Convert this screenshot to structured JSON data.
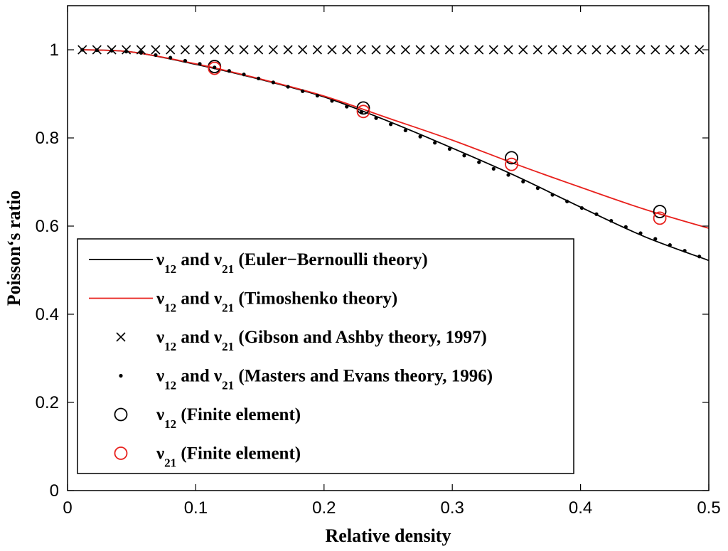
{
  "chart_data": {
    "type": "line",
    "xlabel": "Relative density",
    "ylabel": "Poisson‘s ratio",
    "xlim": [
      0,
      0.5
    ],
    "ylim": [
      0,
      1.1
    ],
    "xticks": [
      0,
      0.1,
      0.2,
      0.3,
      0.4,
      0.5
    ],
    "xtick_labels": [
      "0",
      "0.1",
      "0.2",
      "0.3",
      "0.4",
      "0.5"
    ],
    "yticks": [
      0,
      0.2,
      0.4,
      0.6,
      0.8,
      1
    ],
    "ytick_labels": [
      "0",
      "0.2",
      "0.4",
      "0.6",
      "0.8",
      "1"
    ],
    "grid": false,
    "legend_position": "lower-left",
    "series": [
      {
        "name": "Euler-Bernoulli",
        "style": "line",
        "color": "#000000",
        "label_parts": [
          "ν",
          "12",
          " and ν",
          "21",
          " (Euler−Bernoulli theory)"
        ],
        "x": [
          0.0115,
          0.05,
          0.1,
          0.15,
          0.2,
          0.25,
          0.3,
          0.35,
          0.4,
          0.45,
          0.5
        ],
        "y": [
          1.0,
          0.995,
          0.967,
          0.933,
          0.893,
          0.838,
          0.777,
          0.713,
          0.643,
          0.576,
          0.522
        ]
      },
      {
        "name": "Timoshenko",
        "style": "line",
        "color": "#e8211d",
        "label_parts": [
          "ν",
          "12",
          " and ν",
          "21",
          " (Timoshenko theory)"
        ],
        "x": [
          0.0115,
          0.05,
          0.1,
          0.15,
          0.2,
          0.25,
          0.3,
          0.35,
          0.4,
          0.45,
          0.5
        ],
        "y": [
          1.0,
          0.995,
          0.968,
          0.934,
          0.895,
          0.845,
          0.795,
          0.74,
          0.688,
          0.638,
          0.595
        ]
      },
      {
        "name": "Gibson and Ashby",
        "style": "x-marker",
        "color": "#000000",
        "label_parts": [
          "ν",
          "12",
          " and ν",
          "21",
          " (Gibson and Ashby theory, 1997)"
        ],
        "x": [
          0.0115,
          0.0229,
          0.0344,
          0.0458,
          0.0573,
          0.0687,
          0.0802,
          0.0917,
          0.1031,
          0.1146,
          0.126,
          0.1375,
          0.1489,
          0.1604,
          0.1719,
          0.1833,
          0.1948,
          0.2062,
          0.2177,
          0.2291,
          0.2406,
          0.252,
          0.2635,
          0.275,
          0.2864,
          0.2979,
          0.3093,
          0.3208,
          0.3322,
          0.3437,
          0.3552,
          0.3666,
          0.3781,
          0.3895,
          0.401,
          0.4124,
          0.4239,
          0.4353,
          0.4468,
          0.4583,
          0.4697,
          0.4812,
          0.4926
        ],
        "y": [
          1,
          1,
          1,
          1,
          1,
          1,
          1,
          1,
          1,
          1,
          1,
          1,
          1,
          1,
          1,
          1,
          1,
          1,
          1,
          1,
          1,
          1,
          1,
          1,
          1,
          1,
          1,
          1,
          1,
          1,
          1,
          1,
          1,
          1,
          1,
          1,
          1,
          1,
          1,
          1,
          1,
          1,
          1
        ]
      },
      {
        "name": "Masters and Evans",
        "style": "dot-marker",
        "color": "#000000",
        "label_parts": [
          "ν",
          "12",
          " and ν",
          "21",
          " (Masters and Evans theory, 1996)"
        ],
        "x": [
          0.0115,
          0.0229,
          0.0344,
          0.0458,
          0.0573,
          0.0687,
          0.0802,
          0.0917,
          0.1031,
          0.1146,
          0.126,
          0.1375,
          0.1489,
          0.1604,
          0.1719,
          0.1833,
          0.1948,
          0.2062,
          0.2177,
          0.2291,
          0.2406,
          0.252,
          0.2635,
          0.275,
          0.2864,
          0.2979,
          0.3093,
          0.3208,
          0.3322,
          0.3437,
          0.3552,
          0.3666,
          0.3781,
          0.3895,
          0.401,
          0.4124,
          0.4239,
          0.4353,
          0.4468,
          0.4583,
          0.4697,
          0.4812,
          0.4926
        ],
        "y": [
          1.0,
          0.999,
          0.998,
          0.996,
          0.993,
          0.988,
          0.982,
          0.975,
          0.968,
          0.96,
          0.952,
          0.944,
          0.935,
          0.926,
          0.916,
          0.906,
          0.896,
          0.884,
          0.871,
          0.858,
          0.845,
          0.831,
          0.817,
          0.803,
          0.789,
          0.775,
          0.76,
          0.745,
          0.73,
          0.716,
          0.701,
          0.686,
          0.671,
          0.656,
          0.641,
          0.627,
          0.612,
          0.598,
          0.584,
          0.571,
          0.557,
          0.544,
          0.531
        ]
      },
      {
        "name": "nu12 Finite element",
        "style": "circle-marker",
        "color": "#000000",
        "label_parts": [
          "ν",
          "12",
          " (Finite element)"
        ],
        "x": [
          0.1146,
          0.2306,
          0.3462,
          0.4618
        ],
        "y": [
          0.962,
          0.868,
          0.755,
          0.633
        ]
      },
      {
        "name": "nu21 Finite element",
        "style": "circle-marker",
        "color": "#e8211d",
        "label_parts": [
          "ν",
          "21",
          " (Finite element)"
        ],
        "x": [
          0.1146,
          0.2306,
          0.3462,
          0.4618
        ],
        "y": [
          0.958,
          0.86,
          0.74,
          0.618
        ]
      }
    ]
  }
}
